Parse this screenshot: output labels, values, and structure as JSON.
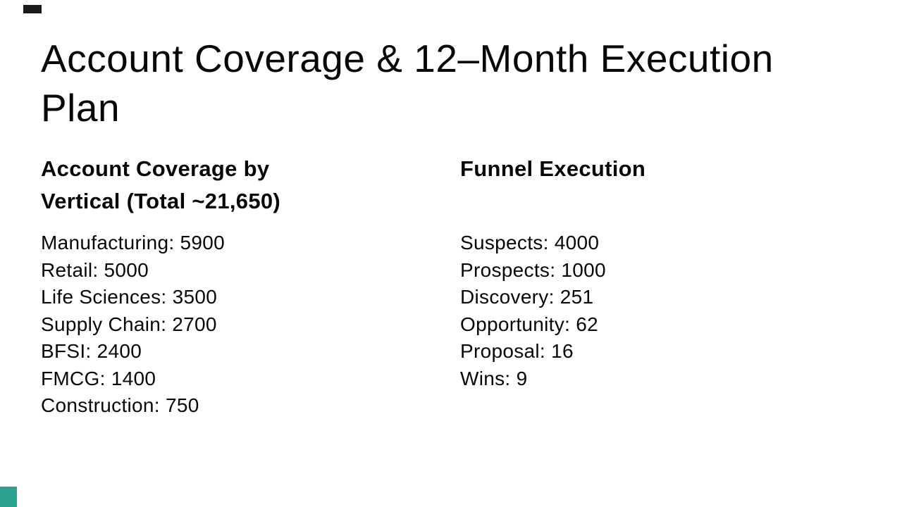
{
  "slide": {
    "title": "Account Coverage & 12–Month Execution Plan",
    "columns": [
      {
        "heading": "Account Coverage by Vertical (Total ~21,650)",
        "items": [
          {
            "label": "Manufacturing",
            "value": "5900",
            "text": "Manufacturing: 5900"
          },
          {
            "label": "Retail",
            "value": "5000",
            "text": "Retail: 5000"
          },
          {
            "label": "Life Sciences",
            "value": "3500",
            "text": "Life Sciences: 3500"
          },
          {
            "label": "Supply Chain",
            "value": "2700",
            "text": "Supply Chain: 2700"
          },
          {
            "label": "BFSI",
            "value": "2400",
            "text": "BFSI: 2400"
          },
          {
            "label": "FMCG",
            "value": "1400",
            "text": "FMCG: 1400"
          },
          {
            "label": "Construction",
            "value": "750",
            "text": "Construction: 750"
          }
        ]
      },
      {
        "heading": "Funnel Execution",
        "items": [
          {
            "label": "Suspects",
            "value": "4000",
            "text": "Suspects: 4000"
          },
          {
            "label": "Prospects",
            "value": "1000",
            "text": "Prospects: 1000"
          },
          {
            "label": "Discovery",
            "value": "251",
            "text": "Discovery: 251"
          },
          {
            "label": "Opportunity",
            "value": "62",
            "text": "Opportunity: 62"
          },
          {
            "label": "Proposal",
            "value": "16",
            "text": "Proposal: 16"
          },
          {
            "label": "Wins",
            "value": "9",
            "text": "Wins: 9"
          }
        ]
      }
    ],
    "theme": {
      "background": "#ffffff",
      "text_color": "#070707",
      "accent_teal": "#2ba38f",
      "accent_dark": "#1b1b1b"
    }
  }
}
